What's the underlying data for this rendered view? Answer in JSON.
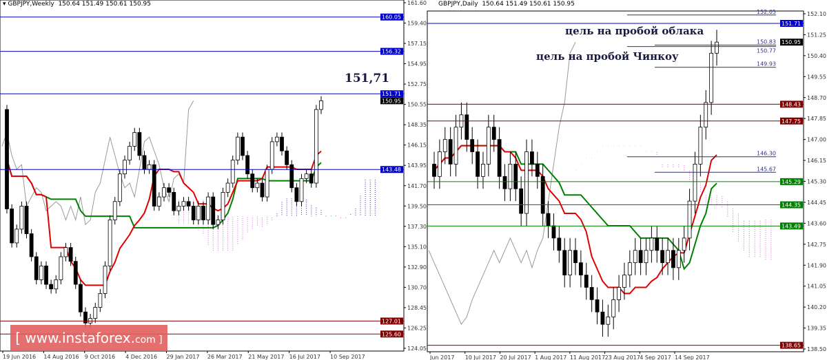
{
  "left_chart": {
    "header": {
      "symbol": "GBPJPY,Weekly",
      "ohlc": "150.64 151.49 150.61 150.95"
    },
    "annotation": "151,71",
    "chart_data": {
      "type": "candlestick",
      "title": "GBPJPY,Weekly",
      "ylim": [
        124.05,
        161.6
      ],
      "y_ticks": [
        "161.60",
        "159.40",
        "157.15",
        "154.95",
        "152.75",
        "150.55",
        "148.35",
        "146.15",
        "143.95",
        "141.70",
        "139.50",
        "137.30",
        "135.10",
        "132.90",
        "130.70",
        "128.45",
        "126.25",
        "124.05"
      ],
      "x_ticks": [
        "19 Jun 2016",
        "14 Aug 2016",
        "9 Oct 2016",
        "4 Dec 2016",
        "29 Jan 2017",
        "26 Mar 2017",
        "21 May 2017",
        "16 Jul 2017",
        "10 Sep 2017"
      ],
      "closes": [
        139.2,
        135.5,
        137.0,
        139.5,
        136.5,
        134.0,
        131.5,
        133.0,
        131.0,
        130.5,
        131.5,
        134.0,
        135.0,
        133.5,
        131.0,
        128.0,
        126.8,
        127.3,
        128.5,
        130.0,
        133.0,
        138.0,
        140.0,
        143.0,
        144.5,
        146.0,
        147.5,
        145.0,
        143.5,
        144.0,
        139.5,
        140.5,
        141.5,
        141.0,
        139.0,
        139.5,
        140.0,
        139.5,
        138.0,
        139.5,
        138.0,
        140.5,
        137.5,
        138.0,
        141.0,
        142.0,
        144.5,
        147.0,
        145.0,
        143.0,
        141.5,
        142.0,
        140.5,
        143.5,
        146.5,
        147.0,
        145.5,
        144.0,
        141.5,
        140.0,
        142.5,
        143.0,
        142.0,
        150.0,
        150.95
      ],
      "first_open": 150.0,
      "levels": [
        {
          "price": 160.05,
          "label": "160.05",
          "color": "#0000cc"
        },
        {
          "price": 156.32,
          "label": "156.32",
          "color": "#0000cc"
        },
        {
          "price": 151.71,
          "label": "151.71",
          "color": "#0000cc"
        },
        {
          "price": 150.95,
          "label": "150.95",
          "color": "#000000"
        },
        {
          "price": 143.48,
          "label": "143.48",
          "color": "#0000cc"
        },
        {
          "price": 127.01,
          "label": "127.01",
          "color": "#800000"
        },
        {
          "price": 125.6,
          "label": "125.60",
          "color": "#800000"
        }
      ]
    }
  },
  "right_chart": {
    "header": {
      "symbol": "GBPJPY,Daily",
      "ohlc": "150.64 151.49 150.61 150.95"
    },
    "annotations": [
      "цель на пробой облака",
      "цель на пробой Чинкоу"
    ],
    "chart_data": {
      "type": "candlestick",
      "title": "GBPJPY,Daily",
      "ylim": [
        138.5,
        152.1
      ],
      "y_ticks": [
        "152.10",
        "151.25",
        "150.40",
        "149.55",
        "148.70",
        "147.85",
        "147.00",
        "146.15",
        "145.30",
        "144.45",
        "143.60",
        "142.75",
        "141.90",
        "141.05",
        "140.20",
        "139.35",
        "138.50"
      ],
      "x_ticks": [
        "Jun 2017",
        "10 Jul 2017",
        "20 Jul 2017",
        "1 Aug 2017",
        "11 Aug 2017",
        "23 Aug 2017",
        "4 Sep 2017",
        "14 Sep 2017"
      ],
      "closes": [
        145.5,
        146.5,
        147.0,
        146.0,
        147.5,
        148.0,
        147.0,
        146.5,
        145.5,
        146.0,
        147.5,
        147.0,
        145.5,
        145.0,
        146.0,
        145.0,
        144.0,
        146.5,
        146.0,
        145.5,
        144.0,
        143.5,
        143.0,
        142.5,
        141.5,
        142.5,
        142.0,
        141.5,
        141.0,
        140.5,
        140.0,
        139.5,
        139.8,
        140.5,
        141.0,
        141.5,
        142.0,
        142.5,
        142.0,
        142.5,
        143.0,
        142.5,
        142.0,
        142.5,
        141.8,
        142.5,
        143.0,
        144.5,
        146.0,
        147.5,
        148.5,
        150.5,
        150.95
      ],
      "first_open": 146.0,
      "levels": [
        {
          "price": 151.71,
          "label": "151.71",
          "color": "#0000cc"
        },
        {
          "price": 150.95,
          "label": "150.95",
          "color": "#000000"
        },
        {
          "price": 148.43,
          "label": "148.43",
          "color": "#800000"
        },
        {
          "price": 147.75,
          "label": "147.75",
          "color": "#800000"
        },
        {
          "price": 145.29,
          "label": "145.29",
          "color": "#008000"
        },
        {
          "price": 144.35,
          "label": "144.35",
          "color": "#008000"
        },
        {
          "price": 143.49,
          "label": "143.49",
          "color": "#008000"
        },
        {
          "price": 138.65,
          "label": "138.65",
          "color": "#800000"
        }
      ],
      "short_levels": [
        {
          "price": 152.05,
          "label": "152.05"
        },
        {
          "price": 150.83,
          "label": "150.83"
        },
        {
          "price": 150.77,
          "label": "150.77"
        },
        {
          "price": 149.93,
          "label": "149.93"
        },
        {
          "price": 146.3,
          "label": "146.30"
        },
        {
          "price": 145.67,
          "label": "145.67"
        }
      ]
    }
  },
  "watermark": {
    "main": "[ www.instaforex",
    "suffix": "com ]"
  }
}
